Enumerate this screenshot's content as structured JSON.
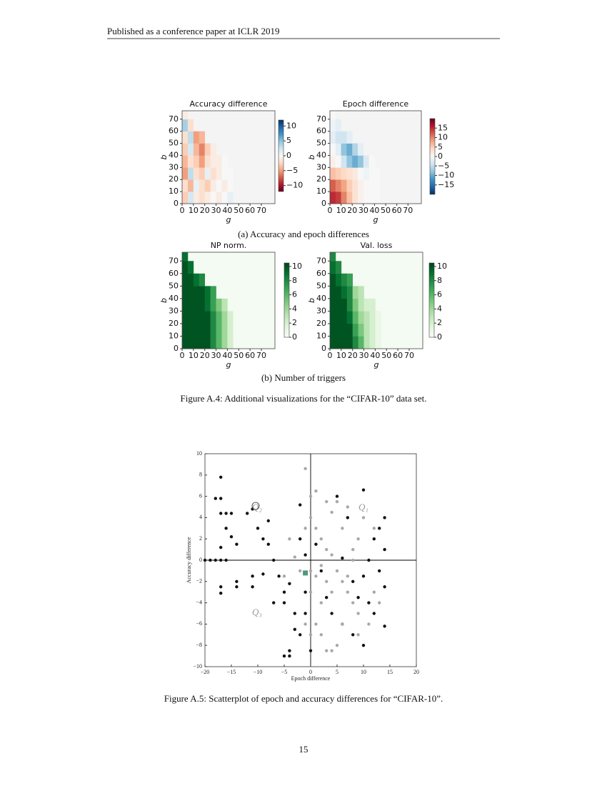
{
  "header": "Published as a conference paper at ICLR 2019",
  "figure_a4": {
    "panels": [
      {
        "type": "heatmap",
        "title": "Accuracy difference",
        "xlabel": "g",
        "ylabel": "b",
        "colormap": "RdBu",
        "xbins": [
          0,
          5,
          10,
          15,
          20,
          25,
          30,
          35,
          40,
          45
        ],
        "ybins": [
          0,
          10,
          20,
          30,
          40,
          50,
          60,
          70,
          77
        ],
        "values": [
          [
            -3,
            2,
            -1,
            -2,
            -1,
            0,
            -1,
            0,
            1
          ],
          [
            -2,
            -4,
            1,
            -2,
            -3,
            -1,
            0,
            -1,
            0
          ],
          [
            -5,
            3,
            -2,
            -3,
            1,
            -2,
            -1,
            0,
            0
          ],
          [
            -4,
            -2,
            -3,
            -5,
            -2,
            -1,
            -1,
            0,
            null
          ],
          [
            -3,
            2,
            -4,
            -6,
            -3,
            -1,
            null,
            null,
            null
          ],
          [
            -2,
            3,
            -5,
            -4,
            null,
            null,
            null,
            null,
            null
          ],
          [
            4,
            -2,
            null,
            null,
            null,
            null,
            null,
            null,
            null
          ],
          [
            -1,
            null,
            null,
            null,
            null,
            null,
            null,
            null,
            null
          ]
        ],
        "xlim": [
          0,
          82
        ],
        "ylim": [
          0,
          77
        ],
        "xticks": [
          0,
          10,
          20,
          30,
          40,
          50,
          60,
          70
        ],
        "yticks": [
          0,
          10,
          20,
          30,
          40,
          50,
          60,
          70
        ],
        "clim": [
          -12,
          12
        ],
        "cticks": [
          10,
          5,
          0,
          {
            "value": -5,
            "label": "−5"
          },
          {
            "value": -10,
            "label": "−10"
          }
        ]
      },
      {
        "type": "heatmap",
        "title": "Epoch difference",
        "xlabel": "g",
        "ylabel": "b",
        "colormap": "RdBu_r",
        "xbins": [
          0,
          5,
          10,
          15,
          20,
          25,
          30,
          35,
          40,
          45
        ],
        "ybins": [
          0,
          10,
          20,
          30,
          40,
          50,
          60,
          70,
          77
        ],
        "values": [
          [
            15,
            14,
            10,
            6,
            3,
            1,
            0,
            0,
            0
          ],
          [
            12,
            10,
            8,
            5,
            3,
            1,
            0,
            0,
            0
          ],
          [
            6,
            5,
            4,
            3,
            2,
            0,
            -1,
            0,
            0
          ],
          [
            1,
            0,
            -4,
            -8,
            -10,
            -8,
            -3,
            0,
            null
          ],
          [
            0,
            -2,
            -8,
            -10,
            -6,
            -2,
            null,
            null,
            null
          ],
          [
            -2,
            -4,
            -4,
            -2,
            null,
            null,
            null,
            null,
            null
          ],
          [
            -1,
            -2,
            null,
            null,
            null,
            null,
            null,
            null,
            null
          ],
          [
            0,
            null,
            null,
            null,
            null,
            null,
            null,
            null,
            null
          ]
        ],
        "xlim": [
          0,
          82
        ],
        "ylim": [
          0,
          77
        ],
        "xticks": [
          0,
          10,
          20,
          30,
          40,
          50,
          60,
          70
        ],
        "yticks": [
          0,
          10,
          20,
          30,
          40,
          50,
          60,
          70
        ],
        "clim": [
          -20,
          20
        ],
        "cticks": [
          15,
          10,
          5,
          0,
          {
            "value": -5,
            "label": "−5"
          },
          {
            "value": -10,
            "label": "−10"
          },
          {
            "value": -15,
            "label": "−15"
          }
        ]
      },
      {
        "type": "heatmap",
        "title": "NP norm.",
        "xlabel": "g",
        "ylabel": "b",
        "colormap": "Greens",
        "xbins": [
          0,
          5,
          10,
          15,
          20,
          25,
          30,
          35,
          40,
          45
        ],
        "ybins": [
          0,
          10,
          20,
          30,
          40,
          50,
          60,
          70,
          77
        ],
        "values": [
          [
            10,
            10,
            10,
            10,
            10,
            8,
            6,
            4,
            2
          ],
          [
            10,
            10,
            10,
            10,
            10,
            8,
            6,
            4,
            2
          ],
          [
            10,
            10,
            10,
            10,
            10,
            8,
            6,
            4,
            2
          ],
          [
            10,
            10,
            10,
            10,
            9,
            7,
            5,
            3,
            null
          ],
          [
            10,
            10,
            10,
            10,
            9,
            7,
            null,
            null,
            null
          ],
          [
            10,
            10,
            9,
            8,
            null,
            null,
            null,
            null,
            null
          ],
          [
            10,
            9,
            null,
            null,
            null,
            null,
            null,
            null,
            null
          ],
          [
            9,
            null,
            null,
            null,
            null,
            null,
            null,
            null,
            null
          ]
        ],
        "xlim": [
          0,
          82
        ],
        "ylim": [
          0,
          77
        ],
        "xticks": [
          0,
          10,
          20,
          30,
          40,
          50,
          60,
          70
        ],
        "yticks": [
          0,
          10,
          20,
          30,
          40,
          50,
          60,
          70
        ],
        "clim": [
          0,
          10.5
        ],
        "cticks": [
          10,
          8,
          6,
          4,
          2,
          0
        ]
      },
      {
        "type": "heatmap",
        "title": "Val. loss",
        "xlabel": "g",
        "ylabel": "b",
        "colormap": "Greens",
        "xbins": [
          0,
          5,
          10,
          15,
          20,
          25,
          30,
          35,
          40,
          45
        ],
        "ybins": [
          0,
          10,
          20,
          30,
          40,
          50,
          60,
          70,
          77
        ],
        "values": [
          [
            10,
            10,
            10,
            10,
            8,
            6,
            3,
            2,
            1
          ],
          [
            10,
            10,
            10,
            10,
            7,
            5,
            3,
            2,
            1
          ],
          [
            10,
            10,
            10,
            9,
            6,
            4,
            3,
            2,
            1
          ],
          [
            10,
            10,
            10,
            8,
            5,
            3,
            2,
            2,
            null
          ],
          [
            10,
            10,
            9,
            8,
            4,
            3,
            null,
            null,
            null
          ],
          [
            10,
            9,
            8,
            7,
            null,
            null,
            null,
            null,
            null
          ],
          [
            9,
            8,
            null,
            null,
            null,
            null,
            null,
            null,
            null
          ],
          [
            8,
            null,
            null,
            null,
            null,
            null,
            null,
            null,
            null
          ]
        ],
        "xlim": [
          0,
          82
        ],
        "ylim": [
          0,
          77
        ],
        "xticks": [
          0,
          10,
          20,
          30,
          40,
          50,
          60,
          70
        ],
        "yticks": [
          0,
          10,
          20,
          30,
          40,
          50,
          60,
          70
        ],
        "clim": [
          0,
          10.5
        ],
        "cticks": [
          10,
          8,
          6,
          4,
          2,
          0
        ]
      }
    ],
    "subcaption_a": "(a) Accuracy and epoch differences",
    "subcaption_b": "(b) Number of triggers",
    "caption": "Figure A.4: Additional visualizations for the “CIFAR-10” data set."
  },
  "figure_a5": {
    "chart": {
      "type": "scatter",
      "xlabel": "Epoch difference",
      "ylabel": "Accuracy difference",
      "xlim": [
        -20,
        20
      ],
      "ylim": [
        -10,
        10
      ],
      "xticks": [
        {
          "value": -20,
          "label": "−20"
        },
        {
          "value": -15,
          "label": "−15"
        },
        {
          "value": -10,
          "label": "−10"
        },
        {
          "value": -5,
          "label": "−5"
        },
        0,
        5,
        10,
        15,
        20
      ],
      "yticks": [
        {
          "value": -10,
          "label": "−10"
        },
        {
          "value": -8,
          "label": "−8"
        },
        {
          "value": -6,
          "label": "−6"
        },
        {
          "value": -4,
          "label": "−4"
        },
        {
          "value": -2,
          "label": "−2"
        },
        0,
        2,
        4,
        6,
        8,
        10
      ],
      "annotations": [
        "Q₁",
        "Q₂",
        "Q₃"
      ],
      "series": [
        {
          "color": "#111111",
          "x": [
            -17,
            -18,
            -17,
            -17,
            -16,
            -15,
            -16,
            -15,
            -14,
            -17,
            -19,
            -20,
            -18,
            -17,
            -16,
            -17,
            -17,
            -14,
            -14,
            -11,
            -11,
            -12,
            -10,
            -9,
            -8,
            -8,
            -7,
            -6,
            -5,
            -5,
            -4,
            -3,
            -3,
            -4,
            -5,
            -4,
            -2,
            -2,
            -1,
            -1,
            -2,
            0,
            1,
            2,
            3,
            4,
            6,
            5,
            7,
            8,
            9,
            10,
            10,
            11,
            11,
            12,
            12,
            13,
            13,
            14,
            14,
            10,
            14,
            14,
            8,
            6,
            -1,
            -7,
            -9,
            -11
          ],
          "y": [
            7.8,
            5.8,
            5.8,
            4.4,
            4.4,
            4.4,
            3,
            2.2,
            1.5,
            1.2,
            0,
            0,
            0,
            0,
            0,
            -2.5,
            -3.1,
            -2,
            -2.5,
            -2.5,
            -1.5,
            4.4,
            3,
            2,
            3.7,
            1.5,
            0,
            -1.5,
            -3,
            -4,
            -2.2,
            -5,
            -6.5,
            -8.5,
            -9,
            -9,
            5.2,
            2,
            0.5,
            -3,
            -7,
            -8.5,
            1.5,
            -1,
            -3.5,
            -5,
            -6,
            6,
            4,
            -2,
            -3.5,
            6.6,
            -1.5,
            0,
            -4,
            -5,
            2,
            3,
            -1,
            -2.5,
            1,
            -8,
            -6.2,
            4,
            -7,
            0.2,
            -5,
            -4,
            -1.3,
            4.8
          ]
        },
        {
          "color": "#a8a8a8",
          "x": [
            -1,
            0,
            0,
            1,
            2,
            3,
            4,
            5,
            6,
            7,
            8,
            9,
            1,
            2,
            3,
            4,
            6,
            7,
            8,
            9,
            10,
            12,
            12,
            11,
            5,
            4,
            3,
            2,
            0,
            1,
            -2,
            -3,
            -4,
            -5,
            -1,
            0,
            6,
            7,
            8,
            13,
            1,
            -1,
            0,
            9,
            5,
            3,
            2,
            4
          ],
          "y": [
            8.6,
            6,
            4,
            3,
            2,
            1,
            0.5,
            -1,
            -2,
            -3,
            -4,
            -5,
            -6,
            -7,
            -8.5,
            -8.5,
            -6,
            -1.5,
            0,
            2,
            4,
            3,
            -3,
            -6,
            5.5,
            4.5,
            -2,
            -4,
            -1,
            -1.5,
            -1,
            0.3,
            2,
            -1.5,
            3,
            -3,
            3,
            5,
            1,
            -4,
            6.5,
            -6,
            -7,
            -7,
            -8,
            5.5,
            -0.5,
            -3
          ]
        },
        {
          "color": "#4e9a78",
          "marker": "square",
          "x": [
            -1
          ],
          "y": [
            -1.2
          ]
        }
      ]
    },
    "caption": "Figure A.5: Scatterplot of epoch and accuracy differences for “CIFAR-10”."
  },
  "page_number": "15"
}
